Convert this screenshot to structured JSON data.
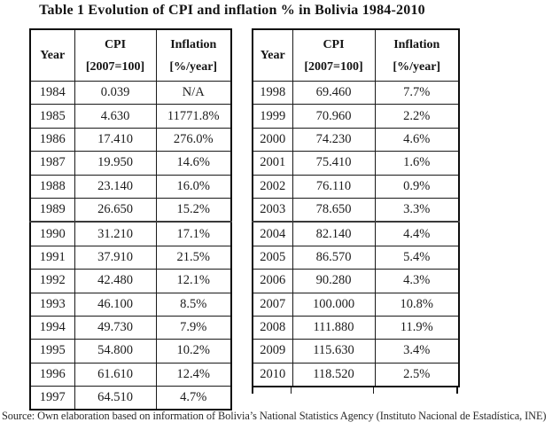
{
  "title": "Table 1 Evolution of CPI and inflation % in Bolivia 1984-2010",
  "headers": {
    "year": "Year",
    "cpi_line1": "CPI",
    "cpi_line2": "[2007=100]",
    "inflation_line1": "Inflation",
    "inflation_line2": "[%/year]"
  },
  "left_table": {
    "rows": [
      [
        "1984",
        "0.039",
        "N/A"
      ],
      [
        "1985",
        "4.630",
        "11771.8%"
      ],
      [
        "1986",
        "17.410",
        "276.0%"
      ],
      [
        "1987",
        "19.950",
        "14.6%"
      ],
      [
        "1988",
        "23.140",
        "16.0%"
      ],
      [
        "1989",
        "26.650",
        "15.2%"
      ],
      [
        "1990",
        "31.210",
        "17.1%"
      ],
      [
        "1991",
        "37.910",
        "21.5%"
      ],
      [
        "1992",
        "42.480",
        "12.1%"
      ],
      [
        "1993",
        "46.100",
        "8.5%"
      ],
      [
        "1994",
        "49.730",
        "7.9%"
      ],
      [
        "1995",
        "54.800",
        "10.2%"
      ],
      [
        "1996",
        "61.610",
        "12.4%"
      ],
      [
        "1997",
        "64.510",
        "4.7%"
      ]
    ]
  },
  "right_table": {
    "rows": [
      [
        "1998",
        "69.460",
        "7.7%"
      ],
      [
        "1999",
        "70.960",
        "2.2%"
      ],
      [
        "2000",
        "74.230",
        "4.6%"
      ],
      [
        "2001",
        "75.410",
        "1.6%"
      ],
      [
        "2002",
        "76.110",
        "0.9%"
      ],
      [
        "2003",
        "78.650",
        "3.3%"
      ],
      [
        "2004",
        "82.140",
        "4.4%"
      ],
      [
        "2005",
        "86.570",
        "5.4%"
      ],
      [
        "2006",
        "90.280",
        "4.3%"
      ],
      [
        "2007",
        "100.000",
        "10.8%"
      ],
      [
        "2008",
        "111.880",
        "11.9%"
      ],
      [
        "2009",
        "115.630",
        "3.4%"
      ],
      [
        "2010",
        "118.520",
        "2.5%"
      ]
    ]
  },
  "source_note": "Source: Own elaboration based on information of Bolivia’s National Statistics Agency (Instituto Nacional de Estadística, INE)",
  "colors": {
    "text": "#1c1c1c",
    "border": "#1a1a1a",
    "background": "#ffffff"
  }
}
